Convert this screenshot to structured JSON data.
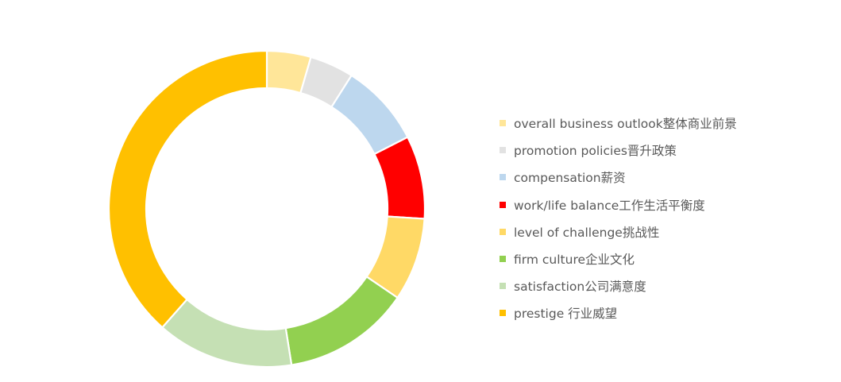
{
  "chart_data": {
    "type": "pie",
    "variant": "donut",
    "title": "",
    "legend_position": "right",
    "series": [
      {
        "label": "overall business outlook整体商业前景",
        "value": 4.5,
        "color": "#FFE699"
      },
      {
        "label": "promotion policies晋升政策",
        "value": 4.5,
        "color": "#E2E2E2"
      },
      {
        "label": "compensation薪资",
        "value": 8.5,
        "color": "#BDD7EE"
      },
      {
        "label": "work/life balance工作生活平衡度",
        "value": 8.5,
        "color": "#FF0000"
      },
      {
        "label": "level of challenge挑战性",
        "value": 8.5,
        "color": "#FFD966"
      },
      {
        "label": "firm culture企业文化",
        "value": 13,
        "color": "#92D050"
      },
      {
        "label": "satisfaction公司满意度",
        "value": 14,
        "color": "#C5E0B4"
      },
      {
        "label": "prestige 行业威望",
        "value": 38.5,
        "color": "#FFC000"
      }
    ]
  }
}
